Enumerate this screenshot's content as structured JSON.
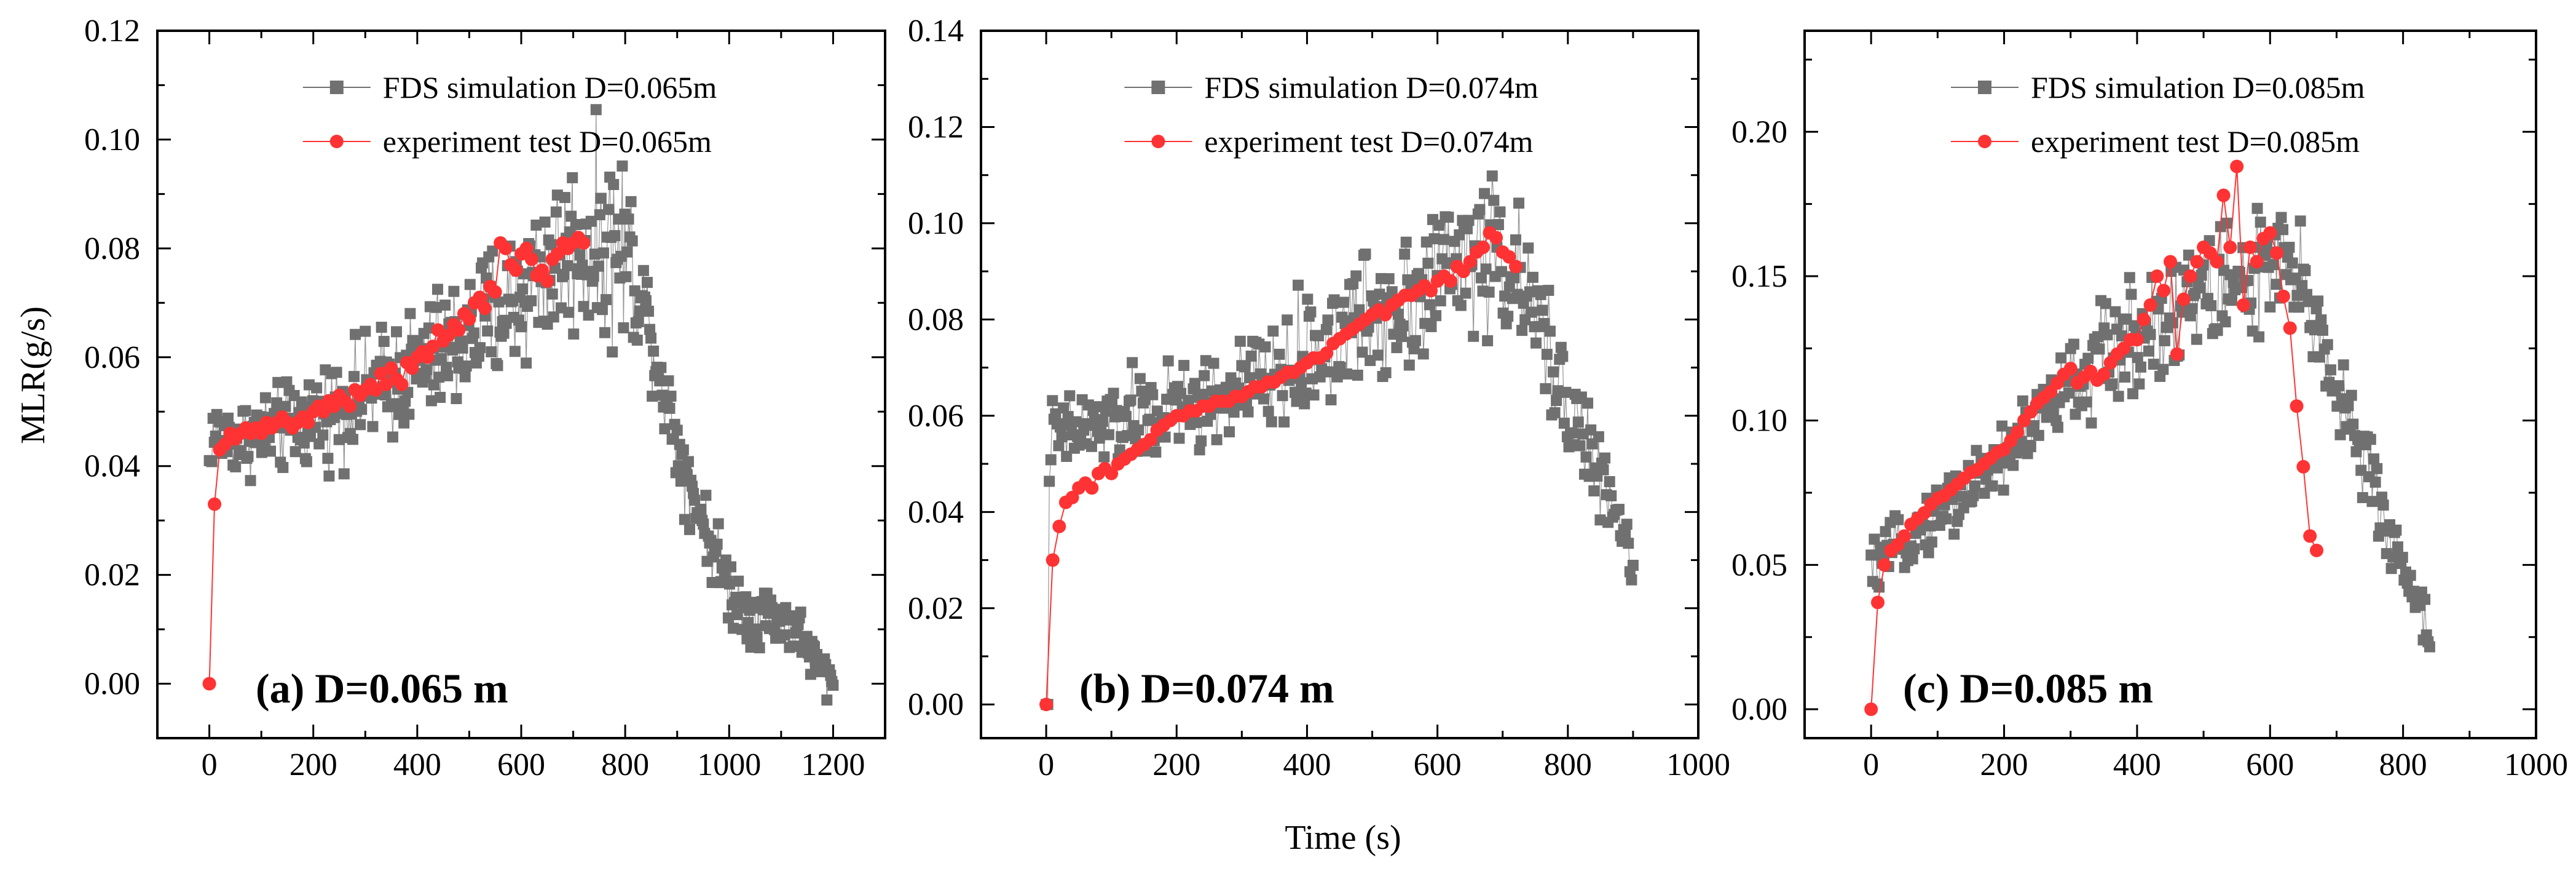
{
  "figure": {
    "ylabel": "MLR(g/s)",
    "xlabel": "Time (s)"
  },
  "chart_data": [
    {
      "type": "scatter",
      "panel_label": "(a) D=0.065 m",
      "xlim": [
        -100,
        1300
      ],
      "ylim": [
        -0.01,
        0.12
      ],
      "xticks": [
        0,
        200,
        400,
        600,
        800,
        1000,
        1200
      ],
      "xtick_labels": [
        "0",
        "200",
        "400",
        "600",
        "800",
        "1000",
        "1200"
      ],
      "yticks": [
        0.0,
        0.02,
        0.04,
        0.06,
        0.08,
        0.1,
        0.12
      ],
      "ytick_labels": [
        "0.00",
        "0.02",
        "0.04",
        "0.06",
        "0.08",
        "0.10",
        "0.12"
      ],
      "legend_position": "top-center",
      "series": [
        {
          "name": "FDS simulation D=0.065m",
          "color": "#707070",
          "marker": "square",
          "trend": [
            [
              0,
              0.041
            ],
            [
              5,
              0.046
            ],
            [
              50,
              0.045
            ],
            [
              100,
              0.046
            ],
            [
              150,
              0.047
            ],
            [
              200,
              0.049
            ],
            [
              250,
              0.051
            ],
            [
              300,
              0.053
            ],
            [
              350,
              0.056
            ],
            [
              400,
              0.058
            ],
            [
              450,
              0.061
            ],
            [
              500,
              0.064
            ],
            [
              550,
              0.068
            ],
            [
              600,
              0.072
            ],
            [
              650,
              0.077
            ],
            [
              700,
              0.08
            ],
            [
              750,
              0.081
            ],
            [
              800,
              0.08
            ],
            [
              830,
              0.073
            ],
            [
              860,
              0.06
            ],
            [
              890,
              0.048
            ],
            [
              920,
              0.038
            ],
            [
              950,
              0.03
            ],
            [
              980,
              0.022
            ],
            [
              1010,
              0.016
            ],
            [
              1040,
              0.013
            ],
            [
              1070,
              0.013
            ],
            [
              1100,
              0.012
            ],
            [
              1130,
              0.01
            ],
            [
              1160,
              0.005
            ],
            [
              1180,
              0.002
            ],
            [
              1200,
              0.0
            ]
          ],
          "spread": [
            [
              0,
              0.003
            ],
            [
              600,
              0.007
            ],
            [
              800,
              0.009
            ],
            [
              850,
              0.004
            ],
            [
              1200,
              0.002
            ]
          ]
        },
        {
          "name": "experiment test D=0.065m",
          "color": "#ff3333",
          "marker": "circle",
          "x": [
            0,
            10,
            20,
            30,
            40,
            50,
            60,
            70,
            80,
            90,
            100,
            110,
            120,
            130,
            140,
            150,
            160,
            170,
            180,
            190,
            200,
            210,
            220,
            230,
            240,
            250,
            260,
            270,
            280,
            290,
            300,
            310,
            320,
            330,
            340,
            350,
            360,
            370,
            380,
            390,
            400,
            410,
            420,
            430,
            440,
            450,
            460,
            470,
            480,
            490,
            500,
            510,
            520,
            530,
            540,
            550,
            560,
            570,
            580,
            590,
            600,
            610,
            620,
            630,
            640,
            650,
            660,
            670,
            680,
            690,
            700,
            710,
            720
          ],
          "y": [
            0.0,
            0.033,
            0.043,
            0.044,
            0.046,
            0.045,
            0.046,
            0.047,
            0.046,
            0.047,
            0.046,
            0.048,
            0.047,
            0.048,
            0.049,
            0.048,
            0.047,
            0.048,
            0.049,
            0.048,
            0.05,
            0.051,
            0.05,
            0.052,
            0.051,
            0.053,
            0.052,
            0.051,
            0.054,
            0.053,
            0.054,
            0.055,
            0.054,
            0.057,
            0.055,
            0.058,
            0.056,
            0.055,
            0.059,
            0.058,
            0.06,
            0.061,
            0.06,
            0.062,
            0.065,
            0.063,
            0.064,
            0.066,
            0.065,
            0.068,
            0.067,
            0.07,
            0.071,
            0.069,
            0.073,
            0.072,
            0.081,
            0.08,
            0.077,
            0.076,
            0.079,
            0.08,
            0.078,
            0.075,
            0.076,
            0.074,
            0.078,
            0.079,
            0.081,
            0.08,
            0.081,
            0.082,
            0.081
          ]
        }
      ]
    },
    {
      "type": "scatter",
      "panel_label": "(b) D=0.074 m",
      "xlim": [
        -100,
        1000
      ],
      "ylim": [
        -0.007,
        0.14
      ],
      "xticks": [
        0,
        200,
        400,
        600,
        800,
        1000
      ],
      "xtick_labels": [
        "0",
        "200",
        "400",
        "600",
        "800",
        "1000"
      ],
      "yticks": [
        0.0,
        0.02,
        0.04,
        0.06,
        0.08,
        0.1,
        0.12,
        0.14
      ],
      "ytick_labels": [
        "0.00",
        "0.02",
        "0.04",
        "0.06",
        "0.08",
        "0.10",
        "0.12",
        "0.14"
      ],
      "legend_position": "top-center",
      "series": [
        {
          "name": "FDS simulation D=0.074m",
          "color": "#707070",
          "marker": "square",
          "trend": [
            [
              0,
              0.0
            ],
            [
              5,
              0.055
            ],
            [
              50,
              0.057
            ],
            [
              100,
              0.058
            ],
            [
              150,
              0.06
            ],
            [
              200,
              0.061
            ],
            [
              250,
              0.063
            ],
            [
              300,
              0.065
            ],
            [
              350,
              0.068
            ],
            [
              400,
              0.072
            ],
            [
              450,
              0.077
            ],
            [
              500,
              0.081
            ],
            [
              550,
              0.085
            ],
            [
              600,
              0.089
            ],
            [
              640,
              0.093
            ],
            [
              680,
              0.094
            ],
            [
              700,
              0.093
            ],
            [
              720,
              0.088
            ],
            [
              750,
              0.08
            ],
            [
              780,
              0.07
            ],
            [
              810,
              0.06
            ],
            [
              840,
              0.05
            ],
            [
              870,
              0.04
            ],
            [
              900,
              0.03
            ]
          ],
          "spread": [
            [
              0,
              0.004
            ],
            [
              400,
              0.006
            ],
            [
              600,
              0.008
            ],
            [
              700,
              0.008
            ],
            [
              900,
              0.003
            ]
          ]
        },
        {
          "name": "experiment test D=0.074m",
          "color": "#ff3333",
          "marker": "circle",
          "x": [
            0,
            10,
            20,
            30,
            40,
            50,
            60,
            70,
            80,
            90,
            100,
            110,
            120,
            130,
            140,
            150,
            160,
            170,
            180,
            190,
            200,
            210,
            220,
            230,
            240,
            250,
            260,
            270,
            280,
            290,
            300,
            310,
            320,
            330,
            340,
            350,
            360,
            370,
            380,
            390,
            400,
            410,
            420,
            430,
            440,
            450,
            460,
            470,
            480,
            490,
            500,
            510,
            520,
            530,
            540,
            550,
            560,
            570,
            580,
            590,
            600,
            610,
            620,
            630,
            640,
            650,
            660,
            670,
            680,
            690,
            700,
            710,
            720
          ],
          "y": [
            0.0,
            0.03,
            0.037,
            0.042,
            0.043,
            0.045,
            0.046,
            0.045,
            0.048,
            0.049,
            0.048,
            0.05,
            0.051,
            0.052,
            0.053,
            0.054,
            0.055,
            0.057,
            0.058,
            0.059,
            0.06,
            0.06,
            0.061,
            0.061,
            0.062,
            0.062,
            0.063,
            0.063,
            0.063,
            0.064,
            0.064,
            0.065,
            0.066,
            0.066,
            0.067,
            0.067,
            0.068,
            0.069,
            0.069,
            0.07,
            0.071,
            0.072,
            0.072,
            0.073,
            0.075,
            0.076,
            0.077,
            0.078,
            0.079,
            0.08,
            0.081,
            0.082,
            0.081,
            0.083,
            0.084,
            0.085,
            0.085,
            0.086,
            0.087,
            0.086,
            0.088,
            0.089,
            0.088,
            0.091,
            0.09,
            0.092,
            0.094,
            0.095,
            0.098,
            0.097,
            0.094,
            0.093,
            0.091
          ]
        }
      ]
    },
    {
      "type": "scatter",
      "panel_label": "(c) D=0.085 m",
      "xlim": [
        -100,
        1000
      ],
      "ylim": [
        -0.01,
        0.235
      ],
      "xticks": [
        0,
        200,
        400,
        600,
        800,
        1000
      ],
      "xtick_labels": [
        "0",
        "200",
        "400",
        "600",
        "800",
        "1000"
      ],
      "yticks": [
        0.0,
        0.05,
        0.1,
        0.15,
        0.2
      ],
      "ytick_labels": [
        "0.00",
        "0.05",
        "0.10",
        "0.15",
        "0.20"
      ],
      "legend_position": "top-center",
      "series": [
        {
          "name": "FDS simulation D=0.085m",
          "color": "#707070",
          "marker": "square",
          "trend": [
            [
              0,
              0.048
            ],
            [
              50,
              0.058
            ],
            [
              100,
              0.068
            ],
            [
              150,
              0.078
            ],
            [
              200,
              0.088
            ],
            [
              250,
              0.1
            ],
            [
              300,
              0.112
            ],
            [
              350,
              0.122
            ],
            [
              400,
              0.13
            ],
            [
              450,
              0.138
            ],
            [
              500,
              0.144
            ],
            [
              550,
              0.148
            ],
            [
              600,
              0.152
            ],
            [
              630,
              0.15
            ],
            [
              660,
              0.14
            ],
            [
              690,
              0.12
            ],
            [
              720,
              0.1
            ],
            [
              750,
              0.08
            ],
            [
              780,
              0.06
            ],
            [
              810,
              0.045
            ],
            [
              840,
              0.025
            ]
          ],
          "spread": [
            [
              0,
              0.004
            ],
            [
              300,
              0.008
            ],
            [
              500,
              0.012
            ],
            [
              600,
              0.012
            ],
            [
              840,
              0.004
            ]
          ]
        },
        {
          "name": "experiment test D=0.085m",
          "color": "#ff3333",
          "marker": "circle",
          "x": [
            0,
            10,
            20,
            30,
            40,
            50,
            60,
            70,
            80,
            90,
            100,
            110,
            120,
            130,
            140,
            150,
            160,
            170,
            180,
            190,
            200,
            210,
            220,
            230,
            240,
            250,
            260,
            270,
            280,
            290,
            300,
            310,
            320,
            330,
            340,
            350,
            360,
            370,
            380,
            390,
            400,
            410,
            420,
            430,
            440,
            450,
            460,
            470,
            480,
            490,
            500,
            510,
            520,
            530,
            540,
            550,
            560,
            570,
            580,
            590,
            600,
            610,
            620,
            630,
            640,
            650,
            660,
            670
          ],
          "y": [
            0.0,
            0.037,
            0.05,
            0.055,
            0.057,
            0.06,
            0.064,
            0.066,
            0.068,
            0.071,
            0.073,
            0.074,
            0.076,
            0.078,
            0.08,
            0.082,
            0.083,
            0.085,
            0.087,
            0.089,
            0.09,
            0.093,
            0.096,
            0.1,
            0.103,
            0.106,
            0.108,
            0.11,
            0.113,
            0.116,
            0.118,
            0.113,
            0.115,
            0.117,
            0.114,
            0.116,
            0.12,
            0.123,
            0.125,
            0.128,
            0.128,
            0.135,
            0.14,
            0.15,
            0.145,
            0.155,
            0.123,
            0.142,
            0.15,
            0.155,
            0.16,
            0.158,
            0.155,
            0.178,
            0.16,
            0.188,
            0.14,
            0.16,
            0.155,
            0.163,
            0.165,
            0.158,
            0.143,
            0.132,
            0.105,
            0.084,
            0.06,
            0.055
          ]
        }
      ]
    }
  ]
}
